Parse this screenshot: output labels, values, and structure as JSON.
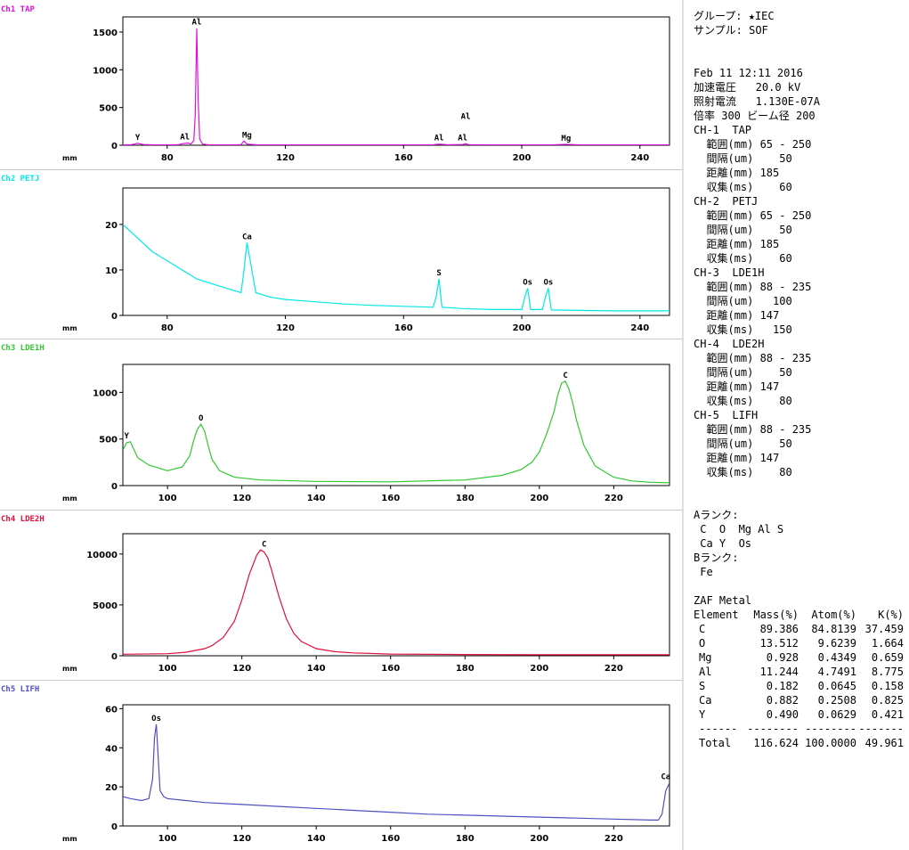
{
  "chart_data": [
    {
      "type": "line",
      "title": "Ch1 TAP",
      "color": "#e010e0",
      "xlabel": "mm",
      "xlim": [
        65,
        250
      ],
      "ylim": [
        0,
        1700
      ],
      "xticks": [
        80,
        120,
        160,
        200,
        240
      ],
      "yticks": [
        0,
        500,
        1000,
        1500
      ],
      "series": [
        {
          "x": [
            65,
            68,
            70,
            72,
            75,
            80,
            84,
            85,
            87,
            88,
            89,
            89.5,
            90,
            90.5,
            91,
            92,
            94,
            100,
            105,
            106,
            107,
            110,
            120,
            140,
            160,
            170,
            172,
            175,
            178,
            180,
            181,
            182,
            190,
            200,
            210,
            215,
            220,
            230,
            240,
            250
          ],
          "y": [
            5,
            8,
            25,
            10,
            6,
            5,
            8,
            20,
            30,
            15,
            60,
            400,
            1550,
            600,
            80,
            15,
            6,
            5,
            8,
            55,
            15,
            6,
            5,
            5,
            5,
            6,
            15,
            6,
            8,
            10,
            20,
            8,
            5,
            5,
            5,
            12,
            5,
            5,
            5,
            5
          ]
        }
      ],
      "annotations": [
        {
          "text": "Y",
          "x": 70,
          "y": 25
        },
        {
          "text": "Al",
          "x": 86,
          "y": 30
        },
        {
          "text": "Al",
          "x": 90,
          "y": 1550
        },
        {
          "text": "Mg",
          "x": 107,
          "y": 55
        },
        {
          "text": "Al",
          "x": 172,
          "y": 15
        },
        {
          "text": "Al",
          "x": 180,
          "y": 20
        },
        {
          "text": "Al",
          "x": 181,
          "y": 300
        },
        {
          "text": "Mg",
          "x": 215,
          "y": 12
        }
      ]
    },
    {
      "type": "line",
      "title": "Ch2 PETJ",
      "color": "#00e8e8",
      "xlabel": "mm",
      "xlim": [
        65,
        250
      ],
      "ylim": [
        0,
        28
      ],
      "xticks": [
        80,
        120,
        160,
        200,
        240
      ],
      "yticks": [
        0,
        10,
        20
      ],
      "series": [
        {
          "x": [
            65,
            70,
            75,
            80,
            85,
            90,
            95,
            100,
            105,
            106,
            107,
            110,
            115,
            120,
            130,
            140,
            150,
            160,
            170,
            171,
            172,
            173,
            180,
            190,
            200,
            201,
            202,
            203,
            207,
            208,
            209,
            210,
            220,
            230,
            240,
            250
          ],
          "y": [
            20,
            17,
            14,
            12,
            10,
            8,
            7,
            6,
            5,
            10,
            16,
            5,
            4,
            3.5,
            3,
            2.5,
            2.2,
            2,
            1.8,
            4,
            8,
            1.8,
            1.5,
            1.3,
            1.3,
            4,
            6,
            1.3,
            1.3,
            4,
            6,
            1.2,
            1.1,
            1,
            1,
            1
          ]
        }
      ],
      "annotations": [
        {
          "text": "Ca",
          "x": 107,
          "y": 16
        },
        {
          "text": "S",
          "x": 172,
          "y": 8
        },
        {
          "text": "Os",
          "x": 202,
          "y": 6
        },
        {
          "text": "Os",
          "x": 209,
          "y": 6
        }
      ]
    },
    {
      "type": "line",
      "title": "Ch3 LDE1H",
      "color": "#30c830",
      "xlabel": "mm",
      "xlim": [
        88,
        235
      ],
      "ylim": [
        0,
        1300
      ],
      "xticks": [
        100,
        120,
        140,
        160,
        180,
        200,
        220
      ],
      "yticks": [
        0,
        500,
        1000
      ],
      "series": [
        {
          "x": [
            88,
            89,
            90,
            92,
            95,
            100,
            104,
            106,
            107,
            108,
            109,
            110,
            111,
            112,
            114,
            118,
            125,
            140,
            160,
            180,
            190,
            195,
            198,
            200,
            202,
            204,
            205,
            206,
            207,
            208,
            209,
            210,
            212,
            215,
            220,
            225,
            230,
            235
          ],
          "y": [
            380,
            460,
            470,
            300,
            220,
            160,
            200,
            320,
            480,
            600,
            660,
            580,
            420,
            280,
            160,
            90,
            60,
            45,
            40,
            60,
            110,
            170,
            250,
            360,
            560,
            800,
            980,
            1100,
            1120,
            1030,
            880,
            700,
            430,
            210,
            90,
            50,
            35,
            30
          ]
        }
      ],
      "annotations": [
        {
          "text": "Y",
          "x": 89,
          "y": 470
        },
        {
          "text": "O",
          "x": 109,
          "y": 660
        },
        {
          "text": "C",
          "x": 207,
          "y": 1120
        }
      ]
    },
    {
      "type": "line",
      "title": "Ch4 LDE2H",
      "color": "#e0103a",
      "xlabel": "mm",
      "xlim": [
        88,
        235
      ],
      "ylim": [
        0,
        12000
      ],
      "xticks": [
        100,
        120,
        140,
        160,
        180,
        200,
        220
      ],
      "yticks": [
        0,
        5000,
        10000
      ],
      "series": [
        {
          "x": [
            88,
            100,
            105,
            110,
            112,
            115,
            118,
            120,
            122,
            124,
            125,
            126,
            127,
            128,
            130,
            132,
            134,
            136,
            140,
            145,
            150,
            160,
            180,
            200,
            235
          ],
          "y": [
            150,
            200,
            350,
            700,
            1000,
            1800,
            3400,
            5500,
            8000,
            9900,
            10400,
            10200,
            9600,
            8400,
            5800,
            3600,
            2200,
            1400,
            700,
            400,
            280,
            170,
            120,
            100,
            100
          ]
        }
      ],
      "annotations": [
        {
          "text": "C",
          "x": 126,
          "y": 10400
        }
      ]
    },
    {
      "type": "line",
      "title": "Ch5 LIFH",
      "color": "#5050c0",
      "xlabel": "mm",
      "xlim": [
        88,
        235
      ],
      "ylim": [
        0,
        62
      ],
      "xticks": [
        100,
        120,
        140,
        160,
        180,
        200,
        220
      ],
      "yticks": [
        0,
        20,
        40,
        60
      ],
      "series": [
        {
          "x": [
            88,
            90,
            93,
            95,
            96,
            96.5,
            97,
            97.5,
            98,
            99,
            100,
            105,
            110,
            120,
            130,
            140,
            150,
            160,
            170,
            180,
            190,
            200,
            210,
            220,
            230,
            232,
            233,
            234,
            235
          ],
          "y": [
            15,
            14,
            13,
            14,
            24,
            45,
            52,
            35,
            18,
            15,
            14,
            13,
            12,
            11,
            10,
            9,
            8,
            7,
            6,
            5.5,
            5,
            4.5,
            4,
            3.5,
            3,
            3,
            6,
            18,
            22
          ]
        }
      ],
      "annotations": [
        {
          "text": "Os",
          "x": 97,
          "y": 52
        },
        {
          "text": "Ca",
          "x": 234,
          "y": 22
        }
      ]
    }
  ],
  "info": {
    "group": "グループ: ★IEC",
    "sample": "サンプル: SOF",
    "datetime": "Feb 11 12:11 2016",
    "conditions": [
      "加速電圧   20.0 kV",
      "照射電流   1.130E-07A",
      "倍率 300 ビーム径 200"
    ],
    "channels": [
      "CH-1  TAP",
      "  範囲(mm) 65 - 250",
      "  間隔(um)    50",
      "  距離(mm) 185",
      "  収集(ms)    60",
      "CH-2  PETJ",
      "  範囲(mm) 65 - 250",
      "  間隔(um)    50",
      "  距離(mm) 185",
      "  収集(ms)    60",
      "CH-3  LDE1H",
      "  範囲(mm) 88 - 235",
      "  間隔(um)   100",
      "  距離(mm) 147",
      "  収集(ms)   150",
      "CH-4  LDE2H",
      "  範囲(mm) 88 - 235",
      "  間隔(um)    50",
      "  距離(mm) 147",
      "  収集(ms)    80",
      "CH-5  LIFH",
      "  範囲(mm) 88 - 235",
      "  間隔(um)    50",
      "  距離(mm) 147",
      "  収集(ms)    80"
    ],
    "rank_a_label": "Aランク:",
    "rank_a": [
      " C  O  Mg Al S",
      " Ca Y  Os"
    ],
    "rank_b_label": "Bランク:",
    "rank_b": [
      " Fe"
    ],
    "zaf_title": "ZAF Metal",
    "table": {
      "headers": [
        "Element",
        "Mass(%)",
        "Atom(%)",
        "K(%)"
      ],
      "rows": [
        [
          "C",
          "89.386",
          "84.8139",
          "37.459"
        ],
        [
          "O",
          "13.512",
          "9.6239",
          "1.664"
        ],
        [
          "Mg",
          "0.928",
          "0.4349",
          "0.659"
        ],
        [
          "Al",
          "11.244",
          "4.7491",
          "8.775"
        ],
        [
          "S",
          "0.182",
          "0.0645",
          "0.158"
        ],
        [
          "Ca",
          "0.882",
          "0.2508",
          "0.825"
        ],
        [
          "Y",
          "0.490",
          "0.0629",
          "0.421"
        ]
      ],
      "separator": [
        "------",
        "--------",
        "--------",
        "-------"
      ],
      "total": [
        "Total",
        "116.624",
        "100.0000",
        "49.961"
      ]
    }
  }
}
